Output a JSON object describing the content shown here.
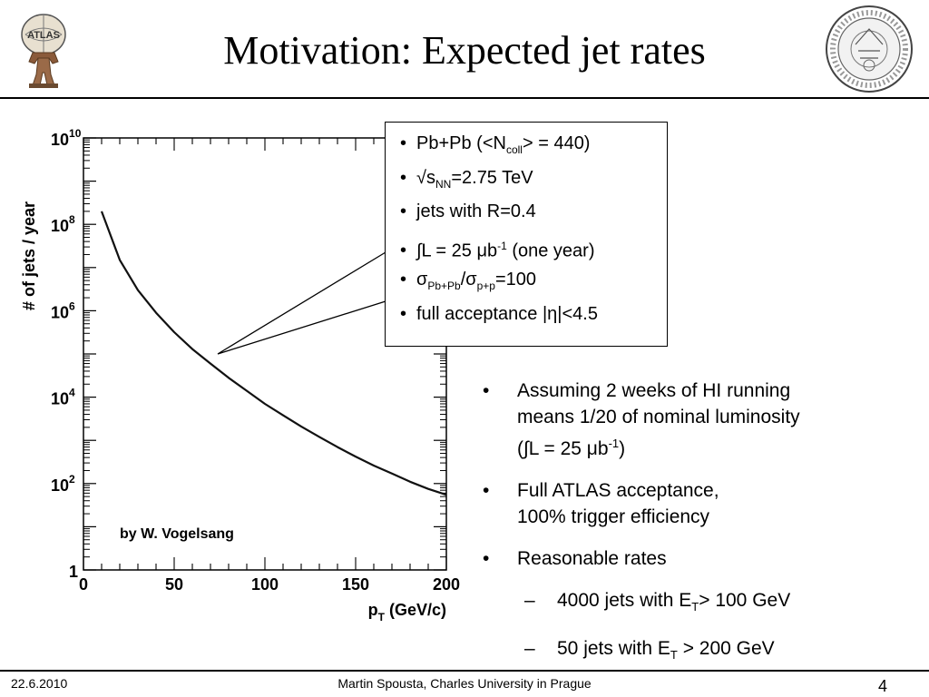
{
  "slide": {
    "title": "Motivation: Expected jet rates",
    "footer_date": "22.6.2010",
    "footer_author": "Martin Spousta,  Charles University in Prague",
    "page_number": "4"
  },
  "logos": {
    "left_text": "ATLAS",
    "right_icon": "faculty-seal-icon"
  },
  "callout": {
    "item1_pre": "Pb+Pb (<N",
    "item1_sub": "coll",
    "item1_post": "> = 440)",
    "item2_pre": "√s",
    "item2_sub": "NN",
    "item2_post": "=2.75 TeV",
    "item3": "jets with R=0.4",
    "item4_pre": "∫L = 25 μb",
    "item4_sup": "-1",
    "item4_post": " (one year)",
    "item5_pre": "σ",
    "item5_sub1": "Pb+Pb",
    "item5_mid": "/σ",
    "item5_sub2": "p+p",
    "item5_post": "=100",
    "item6": "full acceptance |η|<4.5"
  },
  "bullets": {
    "b1_line1": "Assuming 2 weeks of HI running",
    "b1_line2": "means 1/20 of nominal luminosity",
    "b1_line3_pre": "(∫L = 25 μb",
    "b1_line3_sup": "-1",
    "b1_line3_post": ")",
    "b2_line1": "Full ATLAS acceptance,",
    "b2_line2": "100% trigger efficiency",
    "b3": "Reasonable rates",
    "s1_pre": "4000 jets with E",
    "s1_sub": "T",
    "s1_post": "> 100 GeV",
    "s2_pre": "50 jets with E",
    "s2_sub": "T",
    "s2_post": " > 200 GeV"
  },
  "chart_data": {
    "type": "line",
    "xlabel": "p",
    "xlabel_sub": "T",
    "xlabel_unit": " (GeV/c)",
    "ylabel": "# of jets / year",
    "annotation": "by W. Vogelsang",
    "xlim": [
      0,
      200
    ],
    "ylim": [
      1,
      10000000000
    ],
    "yscale": "log",
    "grid": false,
    "x_ticks": [
      0,
      50,
      100,
      150,
      200
    ],
    "y_ticks": [
      {
        "base": "1",
        "exp": ""
      },
      {
        "base": "10",
        "exp": "2"
      },
      {
        "base": "10",
        "exp": "4"
      },
      {
        "base": "10",
        "exp": "6"
      },
      {
        "base": "10",
        "exp": "8"
      },
      {
        "base": "10",
        "exp": "10"
      }
    ],
    "series": [
      {
        "x": [
          10,
          20,
          30,
          40,
          50,
          60,
          70,
          80,
          90,
          100,
          110,
          120,
          130,
          140,
          150,
          160,
          170,
          180,
          190,
          200
        ],
        "y": [
          200000000,
          15000000,
          3000000,
          900000,
          320000,
          130000,
          60000,
          28000,
          14000,
          7000,
          3800,
          2100,
          1200,
          700,
          420,
          260,
          170,
          110,
          75,
          55
        ]
      }
    ]
  }
}
